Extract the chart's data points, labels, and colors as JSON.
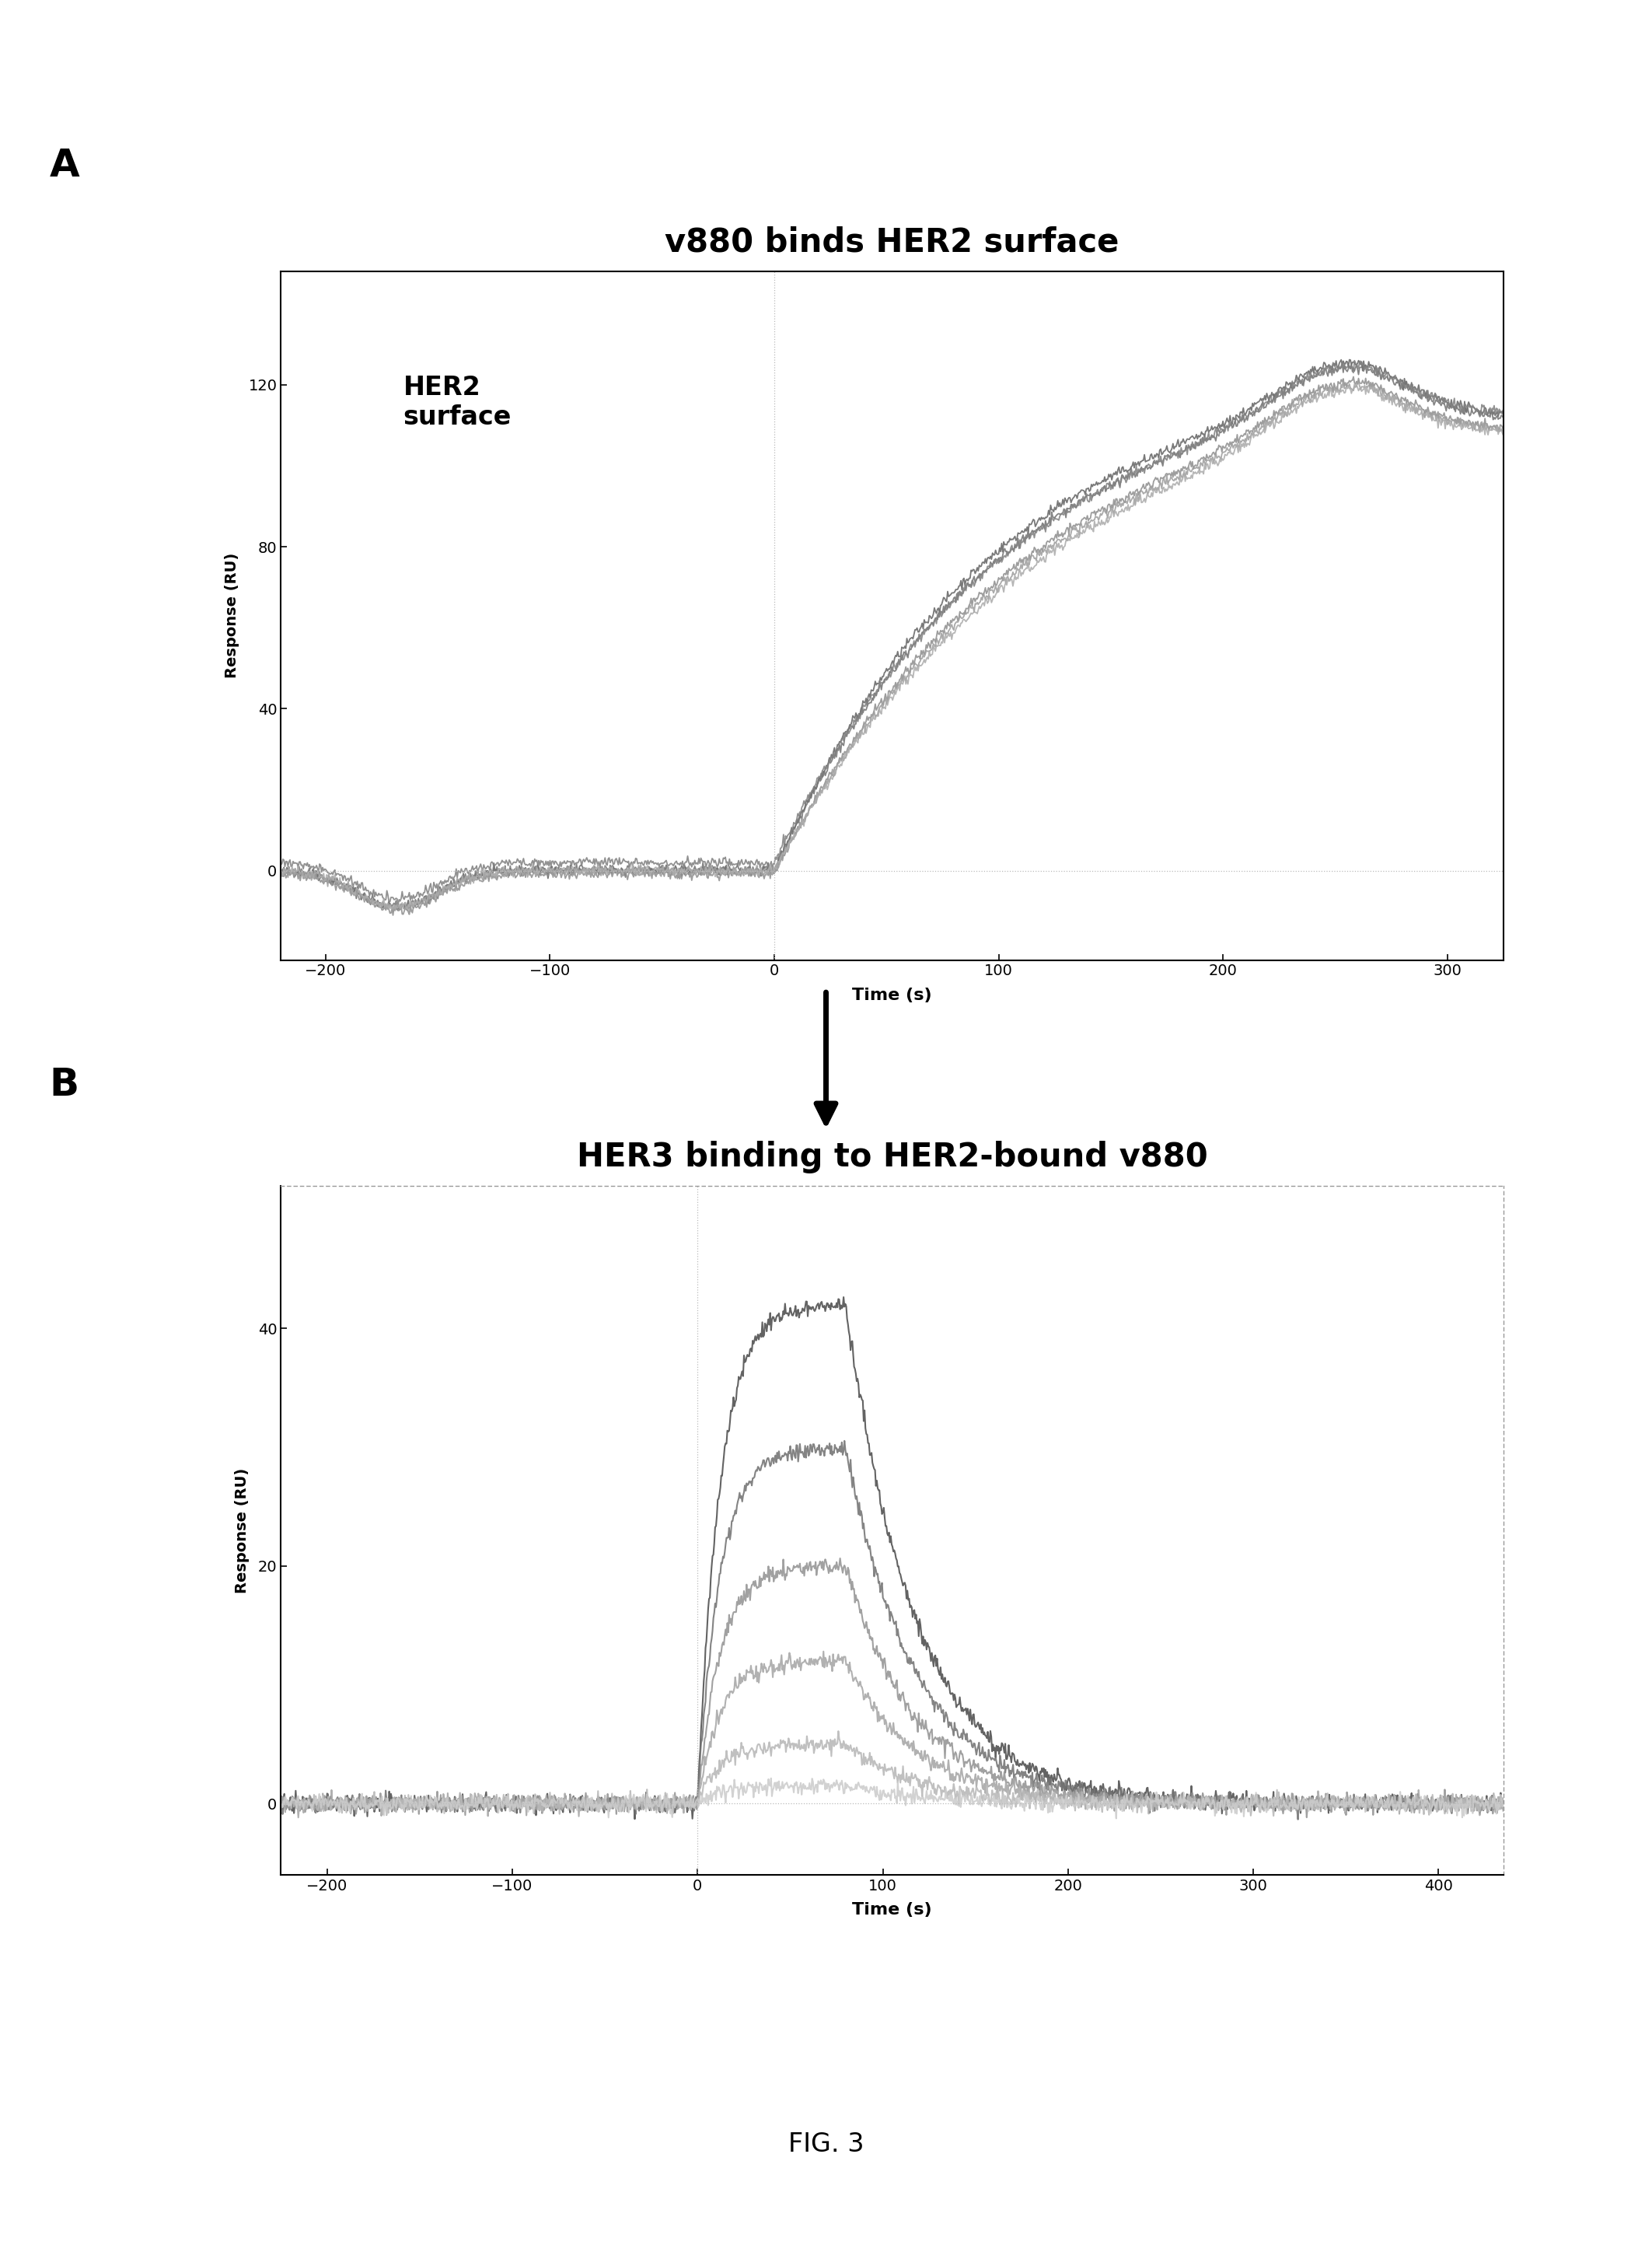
{
  "fig_width": 21.25,
  "fig_height": 29.05,
  "bg_color": "#ffffff",
  "title_A": "v880 binds HER2 surface",
  "title_B": "HER3 binding to HER2-bound v880",
  "label_A": "A",
  "label_B": "B",
  "xlabel": "Time (s)",
  "ylabel": "Response (RU)",
  "annotation_A": "HER2\nsurface",
  "fig_caption": "FIG. 3",
  "plot_A": {
    "xlim": [
      -220,
      325
    ],
    "ylim": [
      -22,
      148
    ],
    "xticks": [
      -200,
      -100,
      0,
      100,
      200,
      300
    ],
    "yticks": [
      0,
      40,
      80,
      120
    ],
    "vline_x": 0,
    "hline_y": 0
  },
  "plot_B": {
    "xlim": [
      -225,
      435
    ],
    "ylim": [
      -6,
      52
    ],
    "xticks": [
      -200,
      -100,
      0,
      100,
      200,
      300,
      400
    ],
    "yticks": [
      0,
      20,
      40
    ],
    "vline_x": 0,
    "hline_y": 0
  }
}
